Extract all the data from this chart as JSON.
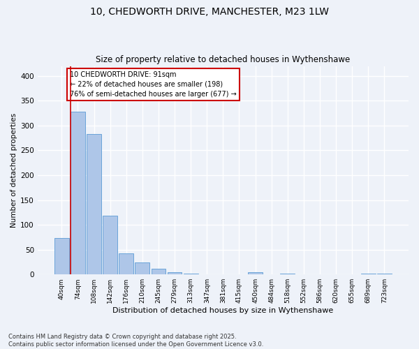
{
  "title_line1": "10, CHEDWORTH DRIVE, MANCHESTER, M23 1LW",
  "title_line2": "Size of property relative to detached houses in Wythenshawe",
  "xlabel": "Distribution of detached houses by size in Wythenshawe",
  "ylabel": "Number of detached properties",
  "categories": [
    "40sqm",
    "74sqm",
    "108sqm",
    "142sqm",
    "176sqm",
    "210sqm",
    "245sqm",
    "279sqm",
    "313sqm",
    "347sqm",
    "381sqm",
    "415sqm",
    "450sqm",
    "484sqm",
    "518sqm",
    "552sqm",
    "586sqm",
    "620sqm",
    "655sqm",
    "689sqm",
    "723sqm"
  ],
  "values": [
    73,
    328,
    283,
    119,
    43,
    24,
    11,
    4,
    1,
    0,
    0,
    0,
    5,
    0,
    1,
    0,
    0,
    0,
    0,
    2,
    1
  ],
  "bar_color": "#aec6e8",
  "bar_edge_color": "#5b9bd5",
  "vline_color": "#cc0000",
  "vline_x_index": 1,
  "annotation_text": "10 CHEDWORTH DRIVE: 91sqm\n← 22% of detached houses are smaller (198)\n76% of semi-detached houses are larger (677) →",
  "annotation_box_color": "#ffffff",
  "annotation_box_edge": "#cc0000",
  "ylim": [
    0,
    420
  ],
  "yticks": [
    0,
    50,
    100,
    150,
    200,
    250,
    300,
    350,
    400
  ],
  "background_color": "#eef2f9",
  "grid_color": "#ffffff",
  "footer_line1": "Contains HM Land Registry data © Crown copyright and database right 2025.",
  "footer_line2": "Contains public sector information licensed under the Open Government Licence v3.0."
}
